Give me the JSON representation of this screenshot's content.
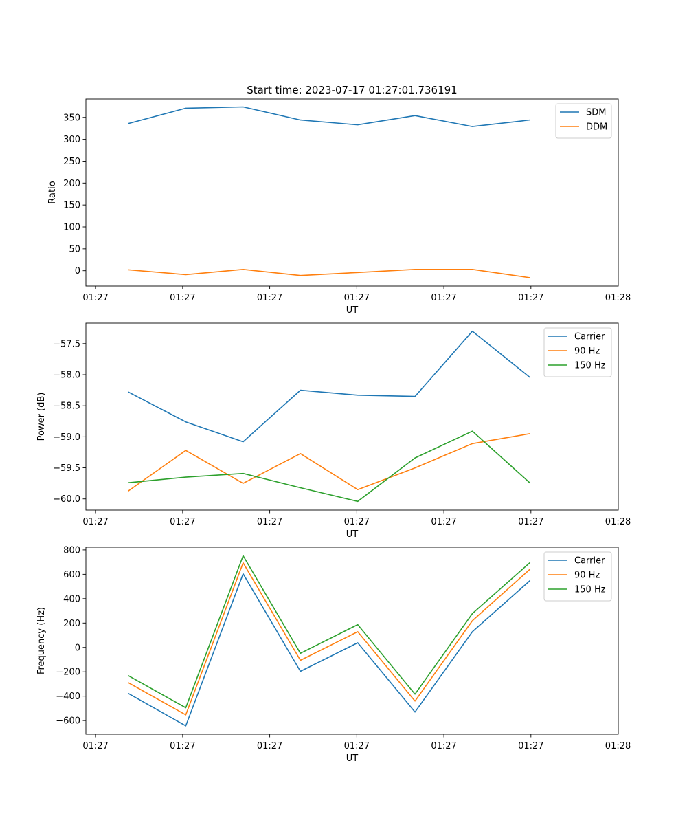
{
  "chart_data": [
    {
      "type": "line",
      "title": "Start time: 2023-07-17 01:27:01.736191",
      "xlabel": "UT",
      "ylabel": "Ratio",
      "x": [
        1.736,
        1.919,
        2.102,
        2.285,
        2.468,
        2.651,
        2.834,
        3.017
      ],
      "xlim": [
        1.6,
        3.3
      ],
      "x_tick_values": [
        1.631,
        1.909,
        2.187,
        2.465,
        2.743,
        3.021,
        3.299
      ],
      "x_tick_labels": [
        "01:27",
        "01:27",
        "01:27",
        "01:27",
        "01:27",
        "01:27",
        "01:28"
      ],
      "ylim": [
        -35,
        392
      ],
      "y_ticks": [
        0,
        50,
        100,
        150,
        200,
        250,
        300,
        350
      ],
      "y_tick_labels": [
        "0",
        "50",
        "100",
        "150",
        "200",
        "250",
        "300",
        "350"
      ],
      "series": [
        {
          "name": "SDM",
          "color": "#1f77b4",
          "values": [
            336,
            371,
            374,
            344,
            333,
            354,
            329,
            344
          ]
        },
        {
          "name": "DDM",
          "color": "#ff7f0e",
          "values": [
            2,
            -9,
            3,
            -11,
            -4,
            3,
            3,
            -16
          ]
        }
      ]
    },
    {
      "type": "line",
      "title": "",
      "xlabel": "UT",
      "ylabel": "Power (dB)",
      "x": [
        1.736,
        1.919,
        2.102,
        2.285,
        2.468,
        2.651,
        2.834,
        3.017
      ],
      "xlim": [
        1.6,
        3.3
      ],
      "x_tick_values": [
        1.631,
        1.909,
        2.187,
        2.465,
        2.743,
        3.021,
        3.299
      ],
      "x_tick_labels": [
        "01:27",
        "01:27",
        "01:27",
        "01:27",
        "01:27",
        "01:27",
        "01:28"
      ],
      "ylim": [
        -60.18,
        -57.17
      ],
      "y_ticks": [
        -60.0,
        -59.5,
        -59.0,
        -58.5,
        -58.0,
        -57.5
      ],
      "y_tick_labels": [
        "−60.0",
        "−59.5",
        "−59.0",
        "−58.5",
        "−58.0",
        "−57.5"
      ],
      "series": [
        {
          "name": "Carrier",
          "color": "#1f77b4",
          "values": [
            -58.28,
            -58.76,
            -59.08,
            -58.25,
            -58.33,
            -58.35,
            -57.3,
            -58.04
          ]
        },
        {
          "name": "90 Hz",
          "color": "#ff7f0e",
          "values": [
            -59.87,
            -59.22,
            -59.75,
            -59.27,
            -59.85,
            -59.5,
            -59.11,
            -58.95
          ]
        },
        {
          "name": "150 Hz",
          "color": "#2ca02c",
          "values": [
            -59.74,
            -59.65,
            -59.59,
            -59.82,
            -60.04,
            -59.34,
            -58.91,
            -59.74
          ]
        }
      ]
    },
    {
      "type": "line",
      "title": "",
      "xlabel": "UT",
      "ylabel": "Frequency (Hz)",
      "x": [
        1.736,
        1.919,
        2.102,
        2.285,
        2.468,
        2.651,
        2.834,
        3.017
      ],
      "xlim": [
        1.6,
        3.3
      ],
      "x_tick_values": [
        1.631,
        1.909,
        2.187,
        2.465,
        2.743,
        3.021,
        3.299
      ],
      "x_tick_labels": [
        "01:27",
        "01:27",
        "01:27",
        "01:27",
        "01:27",
        "01:27",
        "01:28"
      ],
      "ylim": [
        -712,
        822
      ],
      "y_ticks": [
        -600,
        -400,
        -200,
        0,
        200,
        400,
        600,
        800
      ],
      "y_tick_labels": [
        "−600",
        "−400",
        "−200",
        "0",
        "200",
        "400",
        "600",
        "800"
      ],
      "series": [
        {
          "name": "Carrier",
          "color": "#1f77b4",
          "values": [
            -378,
            -643,
            604,
            -196,
            38,
            -530,
            129,
            546
          ]
        },
        {
          "name": "90 Hz",
          "color": "#ff7f0e",
          "values": [
            -290,
            -553,
            694,
            -106,
            129,
            -440,
            219,
            639
          ]
        },
        {
          "name": "150 Hz",
          "color": "#2ca02c",
          "values": [
            -232,
            -495,
            752,
            -48,
            187,
            -383,
            278,
            694
          ]
        }
      ]
    }
  ]
}
